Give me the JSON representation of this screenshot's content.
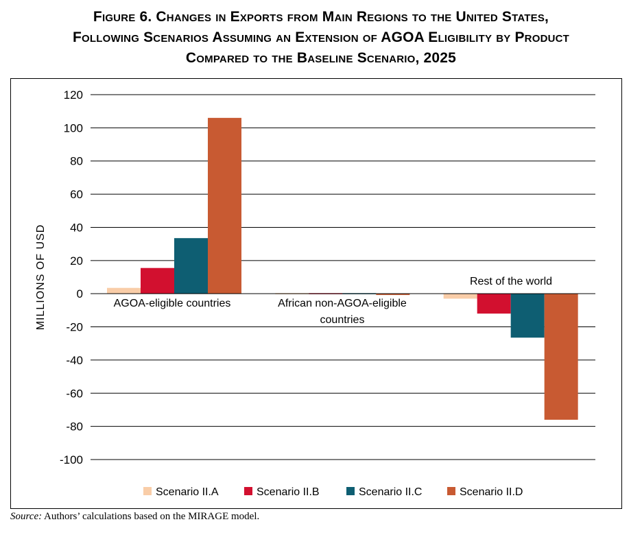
{
  "title_lines": [
    "Figure 6. Changes in Exports from Main Regions to the United States,",
    "Following Scenarios Assuming an Extension of AGOA Eligibility by Product",
    "Compared to the Baseline Scenario, 2025"
  ],
  "source": {
    "label": "Source:",
    "text": " Authors’ calculations based on the MIRAGE model."
  },
  "chart_data": {
    "type": "bar",
    "ylabel": "MILLIONS OF USD",
    "ylim": [
      -100,
      120
    ],
    "yticks": [
      120,
      100,
      80,
      60,
      40,
      20,
      0,
      -20,
      -40,
      -60,
      -80,
      -100
    ],
    "grid": true,
    "legend_position": "bottom",
    "categories": [
      {
        "lines": [
          "AGOA-eligible countries"
        ]
      },
      {
        "lines": [
          "African non-AGOA-eligible",
          "countries"
        ]
      },
      {
        "lines": [
          "Rest of the world"
        ]
      }
    ],
    "series": [
      {
        "name": "Scenario II.A",
        "color": "#F9CDA8",
        "values": [
          3.5,
          0.3,
          -3
        ]
      },
      {
        "name": "Scenario II.B",
        "color": "#D2102F",
        "values": [
          15.5,
          -0.3,
          -12
        ]
      },
      {
        "name": "Scenario II.C",
        "color": "#0E5E72",
        "values": [
          33.5,
          -0.3,
          -26.5
        ]
      },
      {
        "name": "Scenario II.D",
        "color": "#C85A32",
        "values": [
          106,
          -0.8,
          -76
        ]
      }
    ]
  }
}
